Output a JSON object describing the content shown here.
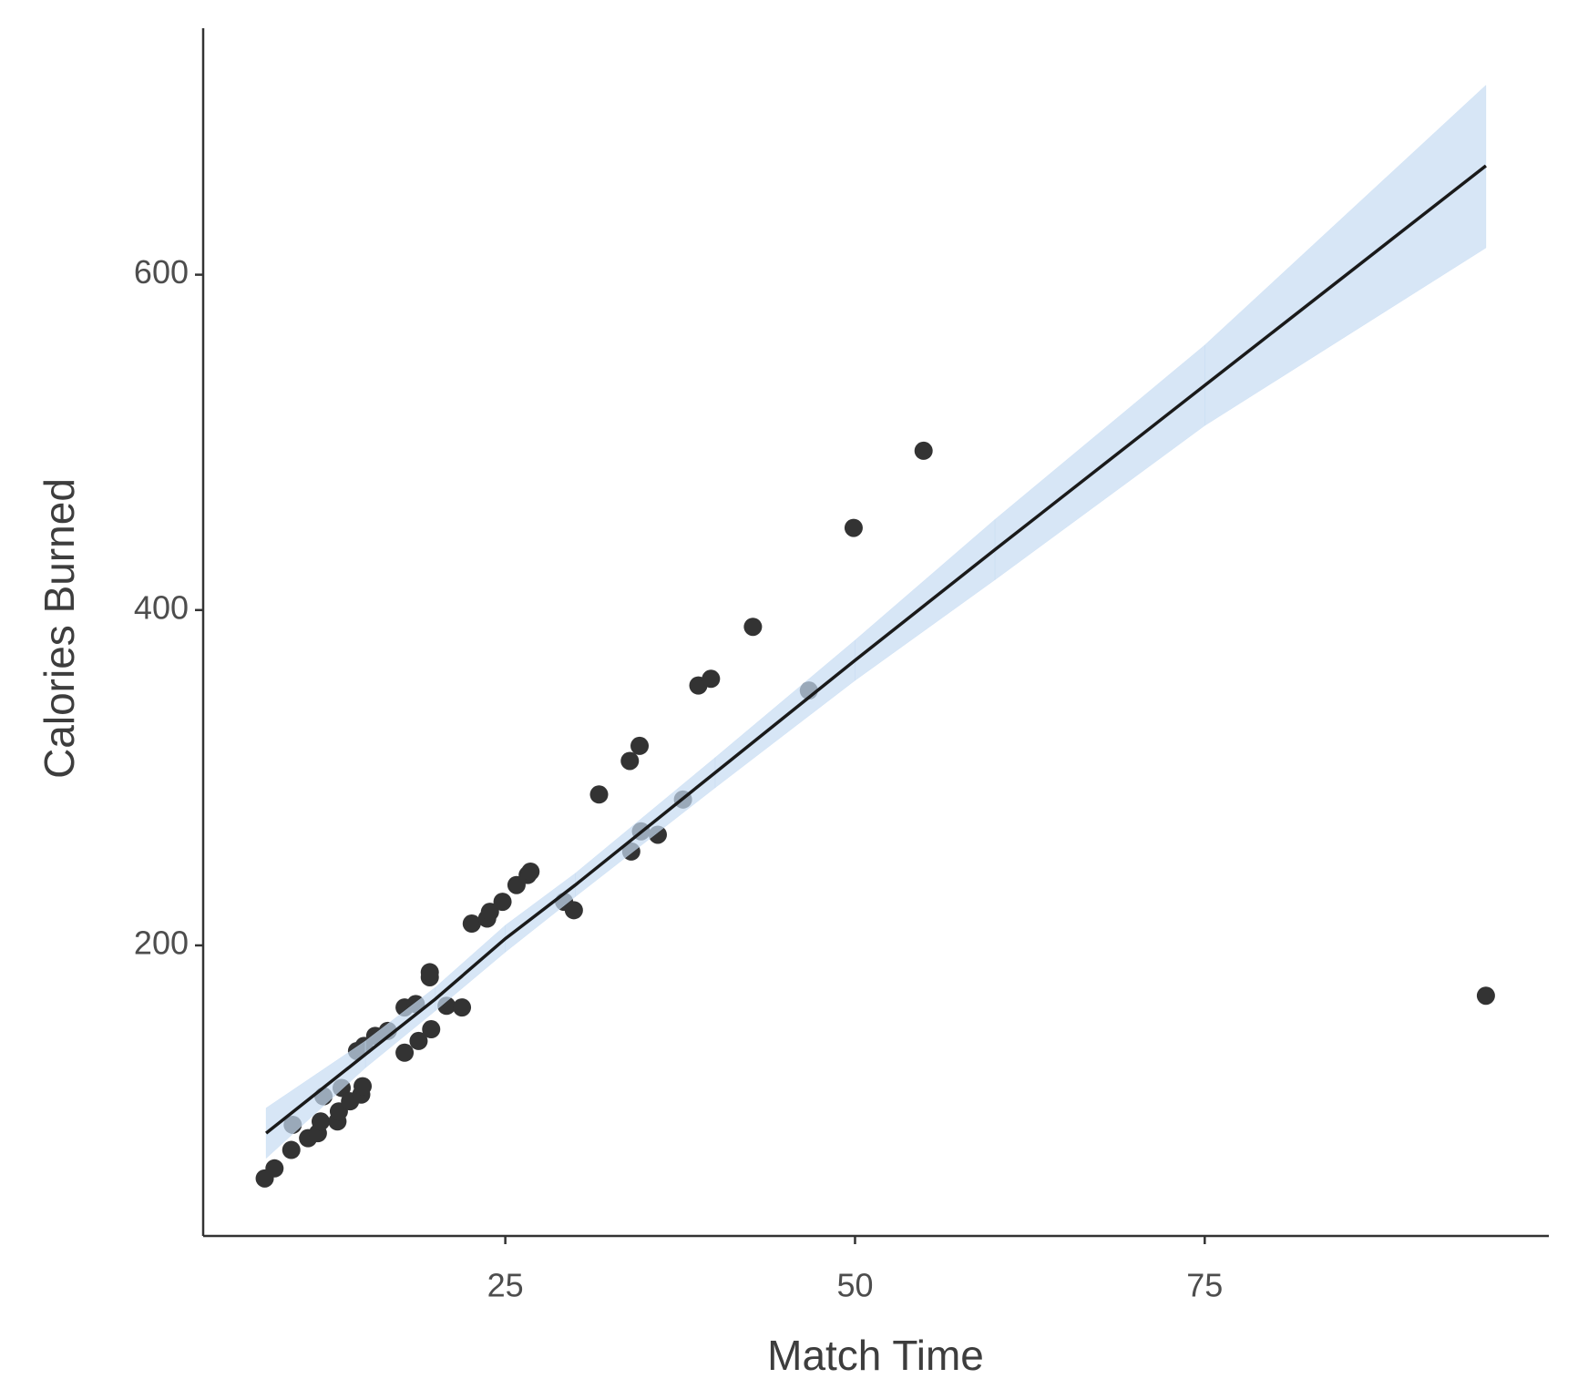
{
  "chart_data": {
    "type": "scatter",
    "x_label": "Match Time",
    "y_label": "Calories Burned",
    "x": [
      7.8,
      8.5,
      9.7,
      9.8,
      10.9,
      11.6,
      11.8,
      13.0,
      13.1,
      12.0,
      13.3,
      13.9,
      14.7,
      14.8,
      14.4,
      14.9,
      15.7,
      16.6,
      17.8,
      17.8,
      18.6,
      18.8,
      19.7,
      19.6,
      19.6,
      20.8,
      21.9,
      22.6,
      23.7,
      23.9,
      24.8,
      25.8,
      26.6,
      26.8,
      29.2,
      29.9,
      31.7,
      33.9,
      34.0,
      34.6,
      34.7,
      35.9,
      37.7,
      38.8,
      39.7,
      42.7,
      46.7,
      49.9,
      54.9,
      95.1
    ],
    "values": [
      61,
      67,
      78,
      93,
      85,
      88,
      95,
      95,
      101,
      110,
      115,
      107,
      111,
      116,
      137,
      140,
      146,
      149,
      136,
      163,
      165,
      143,
      150,
      181,
      184,
      164,
      163,
      213,
      216,
      220,
      226,
      236,
      242,
      244,
      226,
      221,
      290,
      310,
      256,
      319,
      268,
      266,
      287,
      355,
      359,
      390,
      352,
      449,
      495,
      170
    ],
    "color": "#333333",
    "fit": {
      "x": [
        7.9,
        15,
        20,
        25,
        30,
        40,
        50,
        60,
        75,
        95.1
      ],
      "values": [
        88,
        135,
        168,
        204,
        236,
        303,
        370,
        436,
        534,
        665
      ],
      "lower": [
        73,
        127,
        161,
        196,
        229,
        294,
        358,
        418,
        510,
        616
      ],
      "upper": [
        103,
        143,
        175,
        212,
        243,
        312,
        382,
        454,
        558,
        713
      ],
      "color": "#1a1a1a",
      "band_color": "#c6dcf2"
    },
    "xlim": [
      3.4,
      99.6
    ],
    "ylim": [
      26.7,
      747
    ],
    "xticks": [
      25,
      50,
      75
    ],
    "yticks": [
      200,
      400,
      600
    ],
    "grid": false
  }
}
